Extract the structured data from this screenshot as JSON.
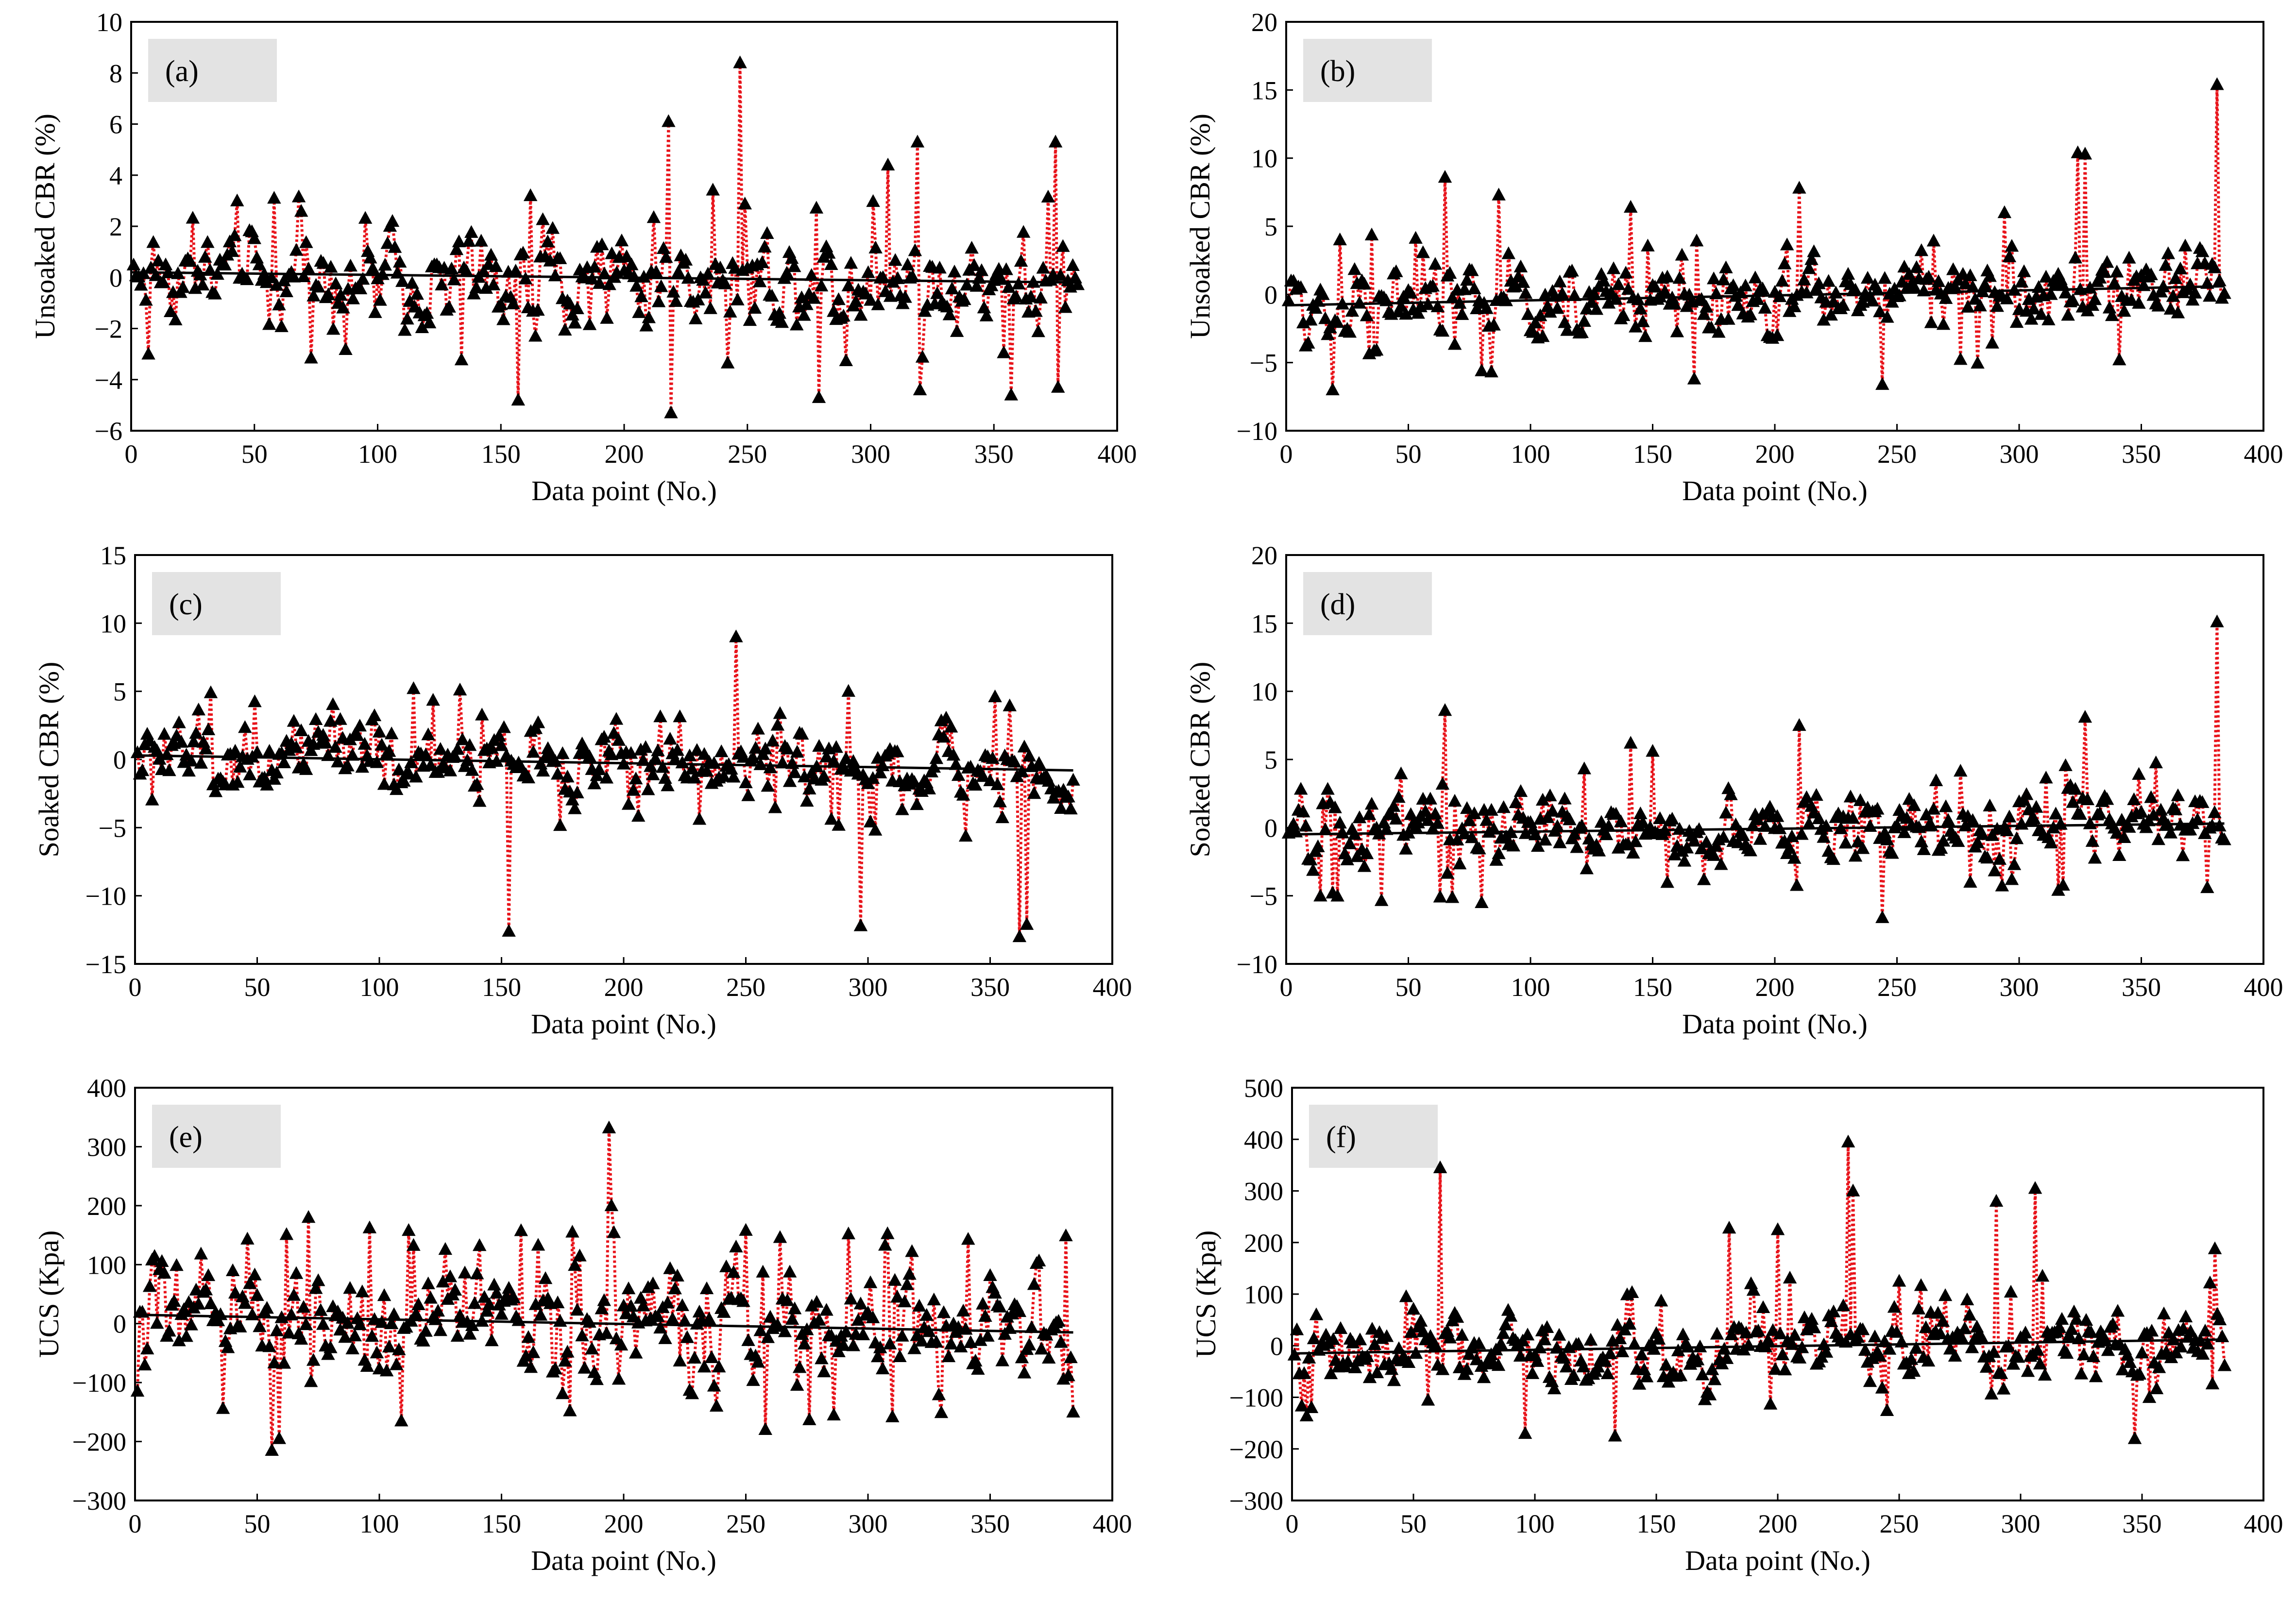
{
  "figure": {
    "colors": {
      "marker": "#000000",
      "residual_line": "#e8141b",
      "trend_line": "#000000",
      "label_box": "#e3e3e3",
      "frame": "#000000"
    },
    "marker_shape": "triangle-up"
  },
  "chart_data": [
    {
      "id": "a",
      "label": "(a)",
      "type": "scatter",
      "xlabel": "Data point (No.)",
      "ylabel": "Unsoaked CBR (%)",
      "xlim": [
        0,
        400
      ],
      "ylim": [
        -6,
        10
      ],
      "xticks": [
        0,
        50,
        100,
        150,
        200,
        250,
        300,
        350,
        400
      ],
      "yticks": [
        -6,
        -4,
        -2,
        0,
        2,
        4,
        6,
        8,
        10
      ],
      "ytick_labels": [
        "−6",
        "−4",
        "−2",
        "0",
        "2",
        "4",
        "6",
        "8",
        "10"
      ],
      "n_points": 384,
      "trend": {
        "x": [
          0,
          384
        ],
        "y": [
          0.2,
          -0.2
        ]
      },
      "noise_amplitude": 1.4,
      "spikes": [
        [
          7,
          -3.0
        ],
        [
          58,
          3.1
        ],
        [
          157,
          -4.8
        ],
        [
          162,
          3.2
        ],
        [
          218,
          6.1
        ],
        [
          219,
          -5.3
        ],
        [
          247,
          8.4
        ],
        [
          279,
          -4.7
        ],
        [
          307,
          4.4
        ],
        [
          319,
          5.3
        ],
        [
          320,
          -4.4
        ],
        [
          357,
          -4.6
        ],
        [
          375,
          5.3
        ],
        [
          376,
          -4.3
        ]
      ],
      "grid": false,
      "legend": "none"
    },
    {
      "id": "b",
      "label": "(b)",
      "type": "scatter",
      "xlabel": "Data point (No.)",
      "ylabel": "Unsoaked CBR (%)",
      "xlim": [
        0,
        400
      ],
      "ylim": [
        -10,
        20
      ],
      "xticks": [
        0,
        50,
        100,
        150,
        200,
        250,
        300,
        350,
        400
      ],
      "yticks": [
        -10,
        -5,
        0,
        5,
        10,
        15,
        20
      ],
      "ytick_labels": [
        "−10",
        "−5",
        "0",
        "5",
        "10",
        "15",
        "20"
      ],
      "n_points": 384,
      "trend": {
        "x": [
          0,
          384
        ],
        "y": [
          -0.8,
          0.6
        ]
      },
      "noise_amplitude": 2.2,
      "spikes": [
        [
          19,
          -7.0
        ],
        [
          65,
          8.6
        ],
        [
          80,
          -5.6
        ],
        [
          87,
          7.3
        ],
        [
          141,
          6.4
        ],
        [
          167,
          -6.2
        ],
        [
          210,
          7.8
        ],
        [
          244,
          -6.6
        ],
        [
          294,
          6.0
        ],
        [
          324,
          10.4
        ],
        [
          327,
          10.3
        ],
        [
          341,
          -4.8
        ],
        [
          381,
          15.4
        ]
      ],
      "grid": false,
      "legend": "none"
    },
    {
      "id": "c",
      "label": "(c)",
      "type": "scatter",
      "xlabel": "Data point (No.)",
      "ylabel": "Soaked CBR (%)",
      "xlim": [
        0,
        400
      ],
      "ylim": [
        -15,
        15
      ],
      "xticks": [
        0,
        50,
        100,
        150,
        200,
        250,
        300,
        350,
        400
      ],
      "yticks": [
        -15,
        -10,
        -5,
        0,
        5,
        10,
        15
      ],
      "ytick_labels": [
        "−15",
        "−10",
        "−5",
        "0",
        "5",
        "10",
        "15"
      ],
      "n_points": 384,
      "trend": {
        "x": [
          0,
          384
        ],
        "y": [
          0.3,
          -0.8
        ]
      },
      "noise_amplitude": 2.0,
      "spikes": [
        [
          31,
          4.9
        ],
        [
          114,
          5.2
        ],
        [
          133,
          5.1
        ],
        [
          153,
          -12.6
        ],
        [
          246,
          9.0
        ],
        [
          292,
          5.0
        ],
        [
          297,
          -12.2
        ],
        [
          352,
          4.6
        ],
        [
          362,
          -13.0
        ],
        [
          365,
          -12.1
        ]
      ],
      "grid": false,
      "legend": "none"
    },
    {
      "id": "d",
      "label": "(d)",
      "type": "scatter",
      "xlabel": "Data point (No.)",
      "ylabel": "Soaked CBR (%)",
      "xlim": [
        0,
        400
      ],
      "ylim": [
        -10,
        20
      ],
      "xticks": [
        0,
        50,
        100,
        150,
        200,
        250,
        300,
        350,
        400
      ],
      "yticks": [
        -10,
        -5,
        0,
        5,
        10,
        15,
        20
      ],
      "ytick_labels": [
        "−10",
        "−5",
        "0",
        "5",
        "10",
        "15",
        "20"
      ],
      "n_points": 384,
      "trend": {
        "x": [
          0,
          384
        ],
        "y": [
          -0.5,
          0.3
        ]
      },
      "noise_amplitude": 2.0,
      "spikes": [
        [
          19,
          -4.8
        ],
        [
          65,
          8.6
        ],
        [
          80,
          -5.5
        ],
        [
          141,
          6.2
        ],
        [
          150,
          5.6
        ],
        [
          210,
          7.5
        ],
        [
          244,
          -6.6
        ],
        [
          327,
          8.1
        ],
        [
          316,
          -4.6
        ],
        [
          377,
          -4.4
        ],
        [
          381,
          15.1
        ]
      ],
      "grid": false,
      "legend": "none"
    },
    {
      "id": "e",
      "label": "(e)",
      "type": "scatter",
      "xlabel": "Data point (No.)",
      "ylabel": "UCS (Kpa)",
      "xlim": [
        0,
        400
      ],
      "ylim": [
        -300,
        400
      ],
      "xticks": [
        0,
        50,
        100,
        150,
        200,
        250,
        300,
        350,
        400
      ],
      "yticks": [
        -300,
        -200,
        -100,
        0,
        100,
        200,
        300,
        400
      ],
      "ytick_labels": [
        "−300",
        "−200",
        "−100",
        "0",
        "100",
        "200",
        "300",
        "400"
      ],
      "n_points": 384,
      "trend": {
        "x": [
          0,
          384
        ],
        "y": [
          15,
          -15
        ]
      },
      "noise_amplitude": 70,
      "spikes": [
        [
          27,
          118
        ],
        [
          56,
          -215
        ],
        [
          59,
          -195
        ],
        [
          109,
          -165
        ],
        [
          112,
          158
        ],
        [
          165,
          133
        ],
        [
          178,
          -148
        ],
        [
          194,
          332
        ],
        [
          195,
          200
        ],
        [
          246,
          130
        ],
        [
          264,
          146
        ],
        [
          286,
          -155
        ],
        [
          307,
          133
        ],
        [
          310,
          -158
        ],
        [
          341,
          143
        ],
        [
          384,
          -150
        ]
      ],
      "grid": false,
      "legend": "none"
    },
    {
      "id": "f",
      "label": "(f)",
      "type": "scatter",
      "xlabel": "Data point (No.)",
      "ylabel": "UCS (Kpa)",
      "xlim": [
        0,
        400
      ],
      "ylim": [
        -300,
        500
      ],
      "xticks": [
        0,
        50,
        100,
        150,
        200,
        250,
        300,
        350,
        400
      ],
      "yticks": [
        -300,
        -200,
        -100,
        0,
        100,
        200,
        300,
        400,
        500
      ],
      "ytick_labels": [
        "−300",
        "−200",
        "−100",
        "0",
        "100",
        "200",
        "300",
        "400",
        "500"
      ],
      "n_points": 384,
      "trend": {
        "x": [
          0,
          384
        ],
        "y": [
          -15,
          12
        ]
      },
      "noise_amplitude": 55,
      "spikes": [
        [
          8,
          -120
        ],
        [
          61,
          345
        ],
        [
          96,
          -170
        ],
        [
          133,
          -175
        ],
        [
          180,
          228
        ],
        [
          200,
          225
        ],
        [
          229,
          395
        ],
        [
          231,
          300
        ],
        [
          290,
          280
        ],
        [
          306,
          305
        ],
        [
          347,
          -180
        ],
        [
          380,
          188
        ]
      ],
      "grid": false,
      "legend": "none"
    }
  ]
}
